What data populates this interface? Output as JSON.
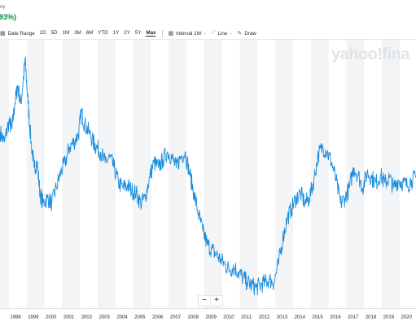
{
  "header": {
    "meta_text": "ny",
    "change_text": "93%)",
    "change_color": "#008a3b"
  },
  "toolbar": {
    "date_range": {
      "icon": "calendar-icon",
      "label": "Date Range"
    },
    "ranges": [
      {
        "label": "1D",
        "active": false
      },
      {
        "label": "5D",
        "active": false
      },
      {
        "label": "1M",
        "active": false
      },
      {
        "label": "3M",
        "active": false
      },
      {
        "label": "6M",
        "active": false
      },
      {
        "label": "YTD",
        "active": false
      },
      {
        "label": "1Y",
        "active": false
      },
      {
        "label": "2Y",
        "active": false
      },
      {
        "label": "5Y",
        "active": false
      },
      {
        "label": "Max",
        "active": true
      }
    ],
    "interval": {
      "icon": "calendar-icon",
      "label": "Interval",
      "value": "1W"
    },
    "chart_type": {
      "icon": "line-chart-icon",
      "label": "Line"
    },
    "draw": {
      "icon": "pencil-icon",
      "label": "Draw"
    }
  },
  "watermark": "yahoo!fina",
  "zoom": {
    "minus": "−",
    "plus": "+"
  },
  "colors": {
    "line": "#1a8cdc",
    "band": "#f3f4f5"
  },
  "chart_data": {
    "type": "line",
    "title": "",
    "xlabel": "",
    "ylabel": "",
    "x_ticks": [
      "1998",
      "1999",
      "2000",
      "2001",
      "2002",
      "2003",
      "2004",
      "2005",
      "2006",
      "2007",
      "2008",
      "2009",
      "2010",
      "2011",
      "2012",
      "2013",
      "2014",
      "2015",
      "2016",
      "2017",
      "2018",
      "2019",
      "2020"
    ],
    "xlim": [
      "1997-07",
      "2020-12"
    ],
    "y_axis_visible": false,
    "grid": "alternating vertical year bands",
    "legend": "none",
    "series": [
      {
        "points": [
          [
            "1997-07",
            0.94
          ],
          [
            "1997-10",
            0.9
          ],
          [
            "1998-01",
            0.98
          ],
          [
            "1998-03",
            0.95
          ],
          [
            "1998-05",
            1.05
          ],
          [
            "1998-07",
            1.12
          ],
          [
            "1998-09",
            1.05
          ],
          [
            "1998-11",
            1.16
          ],
          [
            "1998-12",
            1.22
          ],
          [
            "1999-02",
            1.05
          ],
          [
            "1999-04",
            0.9
          ],
          [
            "1999-06",
            0.8
          ],
          [
            "1999-08",
            0.82
          ],
          [
            "1999-10",
            0.7
          ],
          [
            "1999-12",
            0.66
          ],
          [
            "2000-03",
            0.68
          ],
          [
            "2000-06",
            0.66
          ],
          [
            "2000-09",
            0.72
          ],
          [
            "2000-12",
            0.78
          ],
          [
            "2001-03",
            0.82
          ],
          [
            "2001-06",
            0.88
          ],
          [
            "2001-09",
            0.9
          ],
          [
            "2001-12",
            0.93
          ],
          [
            "2002-02",
            1.02
          ],
          [
            "2002-04",
            0.97
          ],
          [
            "2002-07",
            0.94
          ],
          [
            "2002-10",
            0.9
          ],
          [
            "2002-12",
            0.88
          ],
          [
            "2003-03",
            0.86
          ],
          [
            "2003-06",
            0.82
          ],
          [
            "2003-09",
            0.84
          ],
          [
            "2003-12",
            0.8
          ],
          [
            "2004-03",
            0.74
          ],
          [
            "2004-06",
            0.72
          ],
          [
            "2004-09",
            0.73
          ],
          [
            "2004-12",
            0.71
          ],
          [
            "2005-03",
            0.7
          ],
          [
            "2005-06",
            0.66
          ],
          [
            "2005-09",
            0.68
          ],
          [
            "2005-12",
            0.76
          ],
          [
            "2006-03",
            0.82
          ],
          [
            "2006-06",
            0.8
          ],
          [
            "2006-09",
            0.83
          ],
          [
            "2006-12",
            0.86
          ],
          [
            "2007-03",
            0.84
          ],
          [
            "2007-06",
            0.8
          ],
          [
            "2007-09",
            0.84
          ],
          [
            "2007-12",
            0.86
          ],
          [
            "2008-03",
            0.78
          ],
          [
            "2008-06",
            0.7
          ],
          [
            "2008-09",
            0.62
          ],
          [
            "2008-12",
            0.55
          ],
          [
            "2009-03",
            0.5
          ],
          [
            "2009-06",
            0.48
          ],
          [
            "2009-09",
            0.46
          ],
          [
            "2009-12",
            0.44
          ],
          [
            "2010-03",
            0.42
          ],
          [
            "2010-06",
            0.4
          ],
          [
            "2010-09",
            0.41
          ],
          [
            "2010-12",
            0.39
          ],
          [
            "2011-03",
            0.37
          ],
          [
            "2011-06",
            0.35
          ],
          [
            "2011-09",
            0.34
          ],
          [
            "2011-12",
            0.33
          ],
          [
            "2012-03",
            0.34
          ],
          [
            "2012-06",
            0.35
          ],
          [
            "2012-09",
            0.36
          ],
          [
            "2012-12",
            0.35
          ],
          [
            "2013-03",
            0.42
          ],
          [
            "2013-06",
            0.52
          ],
          [
            "2013-09",
            0.6
          ],
          [
            "2013-12",
            0.64
          ],
          [
            "2014-03",
            0.68
          ],
          [
            "2014-06",
            0.7
          ],
          [
            "2014-09",
            0.66
          ],
          [
            "2014-12",
            0.68
          ],
          [
            "2015-03",
            0.75
          ],
          [
            "2015-06",
            0.85
          ],
          [
            "2015-09",
            0.88
          ],
          [
            "2015-12",
            0.86
          ],
          [
            "2016-03",
            0.82
          ],
          [
            "2016-06",
            0.75
          ],
          [
            "2016-09",
            0.66
          ],
          [
            "2016-12",
            0.68
          ],
          [
            "2017-03",
            0.72
          ],
          [
            "2017-06",
            0.8
          ],
          [
            "2017-09",
            0.77
          ],
          [
            "2017-12",
            0.72
          ],
          [
            "2018-03",
            0.78
          ],
          [
            "2018-06",
            0.76
          ],
          [
            "2018-09",
            0.74
          ],
          [
            "2018-12",
            0.77
          ],
          [
            "2019-03",
            0.74
          ],
          [
            "2019-06",
            0.76
          ],
          [
            "2019-09",
            0.72
          ],
          [
            "2019-12",
            0.75
          ],
          [
            "2020-03",
            0.74
          ],
          [
            "2020-06",
            0.73
          ],
          [
            "2020-09",
            0.75
          ],
          [
            "2020-12",
            0.76
          ]
        ]
      }
    ]
  }
}
